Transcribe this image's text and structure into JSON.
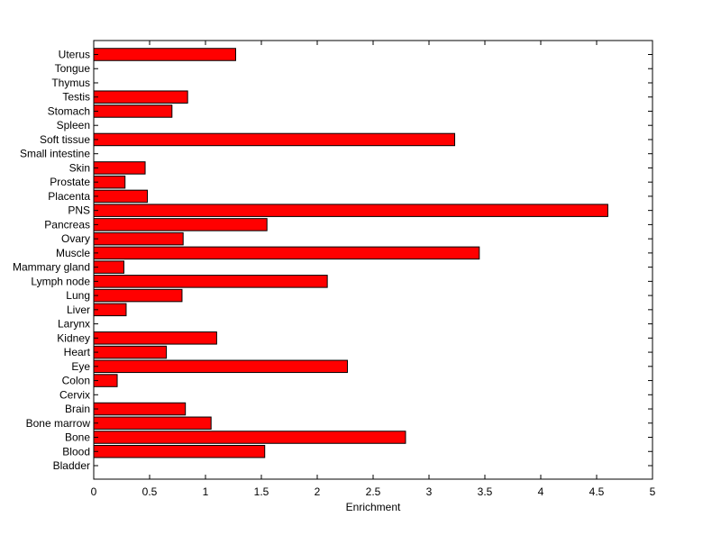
{
  "chart_data": {
    "type": "bar",
    "orientation": "horizontal",
    "title": "",
    "xlabel": "Enrichment",
    "ylabel": "",
    "xlim": [
      0,
      5
    ],
    "xticks": [
      "0",
      "0.5",
      "1",
      "1.5",
      "2",
      "2.5",
      "3",
      "3.5",
      "4",
      "4.5",
      "5"
    ],
    "grid": false,
    "bar_color": "#ff0000",
    "categories": [
      "Bladder",
      "Blood",
      "Bone",
      "Bone marrow",
      "Brain",
      "Cervix",
      "Colon",
      "Eye",
      "Heart",
      "Kidney",
      "Larynx",
      "Liver",
      "Lung",
      "Lymph node",
      "Mammary gland",
      "Muscle",
      "Ovary",
      "Pancreas",
      "PNS",
      "Placenta",
      "Prostate",
      "Skin",
      "Small intestine",
      "Soft tissue",
      "Spleen",
      "Stomach",
      "Testis",
      "Thymus",
      "Tongue",
      "Uterus"
    ],
    "values": [
      0,
      1.53,
      2.79,
      1.05,
      0.82,
      0,
      0.21,
      2.27,
      0.65,
      1.1,
      0,
      0.29,
      0.79,
      2.09,
      0.27,
      3.45,
      0.8,
      1.55,
      4.6,
      0.48,
      0.28,
      0.46,
      0,
      3.23,
      0,
      0.7,
      0.84,
      0,
      0,
      1.27
    ]
  }
}
